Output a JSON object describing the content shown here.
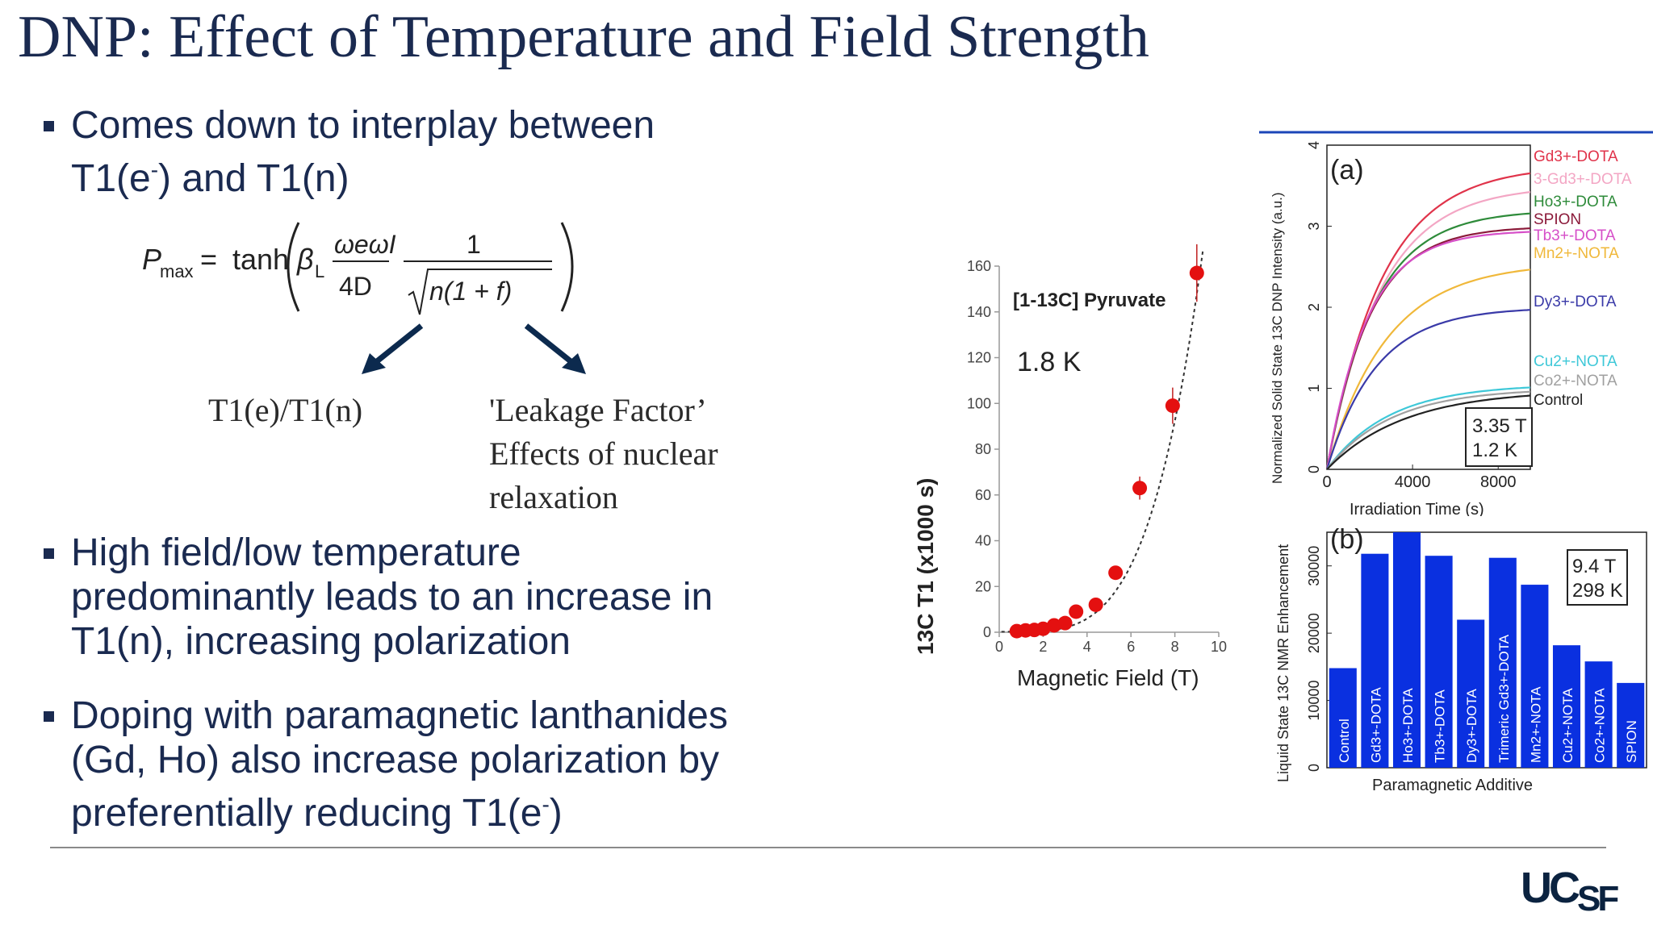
{
  "slide": {
    "title": "DNP: Effect of Temperature and Field Strength",
    "bullet1_line1": "Comes down to interplay between",
    "bullet1_line2_pre": "T1(e",
    "bullet1_line2_sup": "-",
    "bullet1_line2_post": ") and T1(n)",
    "bullet2_line1": "High field/low temperature",
    "bullet2_line2": "predominantly leads to an increase in",
    "bullet2_line3": "T1(n), increasing polarization",
    "bullet3_line1": "Doping with paramagnetic lanthanides",
    "bullet3_line2": "(Gd, Ho) also increase polarization by",
    "bullet3_line3_pre": "preferentially reducing T1(e",
    "bullet3_line3_sup": "-",
    "bullet3_line3_post": ")",
    "logo_main": "UC",
    "logo_small": "SF"
  },
  "equation": {
    "lhs": "P",
    "lhs_sub": "max",
    "eq": "=",
    "func": "tanh",
    "beta": "β",
    "beta_sub": "L",
    "num_omega": "ωeωI",
    "den_4d": "4D",
    "frac_num": "1",
    "frac_den": "n(1 + f)"
  },
  "annotations": {
    "left": "T1(e)/T1(n)",
    "right_line1": "'Leakage Factor’",
    "right_line2": "Effects of nuclear",
    "right_line3": "relaxation"
  },
  "chart_data": [
    {
      "type": "scatter",
      "inset_label": "[1-13C] Pyruvate",
      "temperature_label": "1.8 K",
      "xlabel": "Magnetic Field (T)",
      "ylabel": "13C T1 (x1000 s)",
      "xlim": [
        0,
        10
      ],
      "ylim": [
        0,
        160
      ],
      "xticks": [
        0,
        2,
        4,
        6,
        8,
        10
      ],
      "yticks": [
        0,
        20,
        40,
        60,
        80,
        100,
        120,
        140,
        160
      ],
      "points": [
        {
          "x": 0.8,
          "y": 0.5
        },
        {
          "x": 1.2,
          "y": 0.8
        },
        {
          "x": 1.6,
          "y": 1.0
        },
        {
          "x": 2.0,
          "y": 1.5
        },
        {
          "x": 2.5,
          "y": 3.0
        },
        {
          "x": 3.0,
          "y": 4.0
        },
        {
          "x": 3.5,
          "y": 9.0
        },
        {
          "x": 4.4,
          "y": 12.0
        },
        {
          "x": 5.3,
          "y": 26.0
        },
        {
          "x": 6.4,
          "y": 63.0
        },
        {
          "x": 7.9,
          "y": 99.0
        },
        {
          "x": 9.0,
          "y": 157.0
        }
      ],
      "fit": "dashed power-law fit",
      "marker_color": "#e41010"
    },
    {
      "type": "line",
      "panel": "(a)",
      "xlabel": "Irradiation Time (s)",
      "ylabel": "Normalized Solid State 13C DNP Intensity (a.u.)",
      "xlim": [
        0,
        9500
      ],
      "ylim": [
        0,
        4
      ],
      "xticks": [
        0,
        4000,
        8000
      ],
      "yticks": [
        0,
        1,
        2,
        3,
        4
      ],
      "conditions": [
        "3.35 T",
        "1.2 K"
      ],
      "series": [
        {
          "name": "Gd3+-DOTA",
          "plateau": 3.75,
          "tau": 2600,
          "color": "#e0334a"
        },
        {
          "name": "3-Gd3+-DOTA",
          "plateau": 3.5,
          "tau": 2500,
          "color": "#f3a6c4"
        },
        {
          "name": "Ho3+-DOTA",
          "plateau": 3.2,
          "tau": 2200,
          "color": "#2e8b3a"
        },
        {
          "name": "SPION",
          "plateau": 3.0,
          "tau": 2000,
          "color": "#8b1a3a"
        },
        {
          "name": "Tb3+-DOTA",
          "plateau": 2.95,
          "tau": 1900,
          "color": "#d64fc8"
        },
        {
          "name": "Mn2+-NOTA",
          "plateau": 2.55,
          "tau": 2800,
          "color": "#f0b83a"
        },
        {
          "name": "Dy3+-DOTA",
          "plateau": 2.0,
          "tau": 2300,
          "color": "#3a3aa8"
        },
        {
          "name": "Cu2+-NOTA",
          "plateau": 1.05,
          "tau": 2900,
          "color": "#3ec8d8"
        },
        {
          "name": "Co2+-NOTA",
          "plateau": 1.0,
          "tau": 3000,
          "color": "#a0a0a0"
        },
        {
          "name": "Control",
          "plateau": 0.98,
          "tau": 3600,
          "color": "#222222"
        }
      ]
    },
    {
      "type": "bar",
      "panel": "(b)",
      "xlabel": "Paramagnetic Additive",
      "ylabel": "Liquid State 13C NMR Enhancement",
      "ylim": [
        0,
        35000
      ],
      "yticks": [
        0,
        10000,
        20000,
        30000
      ],
      "conditions": [
        "9.4 T",
        "298 K"
      ],
      "categories": [
        "Control",
        "Gd3+-DOTA",
        "Ho3+-DOTA",
        "Tb3+-DOTA",
        "Dy3+-DOTA",
        "Trimeric Gd3+-DOTA",
        "Mn2+-NOTA",
        "Cu2+-NOTA",
        "Co2+-NOTA",
        "SPION"
      ],
      "values": [
        14800,
        31800,
        35000,
        31500,
        22000,
        31200,
        27200,
        18200,
        15800,
        12600
      ],
      "bar_color": "#0a30e0"
    }
  ]
}
